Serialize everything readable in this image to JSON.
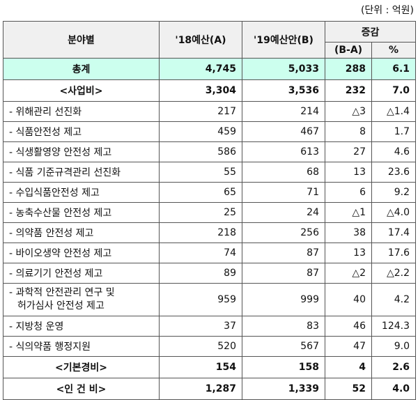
{
  "unit_note": "(단위 : 억원)",
  "header": {
    "category": "분야별",
    "col_a": "'18예산(A)",
    "col_b": "'19예산안(B)",
    "diff_line1": "증감",
    "diff_line2": "(B-A)",
    "pct": "%"
  },
  "total": {
    "name": "총계",
    "a": "4,745",
    "b": "5,033",
    "diff": "288",
    "pct": "6.1"
  },
  "business": {
    "name": "<사업비>",
    "a": "3,304",
    "b": "3,536",
    "diff": "232",
    "pct": "7.0"
  },
  "items": [
    {
      "name": "- 위해관리 선진화",
      "a": "217",
      "b": "214",
      "diff": "△3",
      "pct": "△1.4"
    },
    {
      "name": "- 식품안전성 제고",
      "a": "459",
      "b": "467",
      "diff": "8",
      "pct": "1.7"
    },
    {
      "name": "- 식생활영양 안전성 제고",
      "a": "586",
      "b": "613",
      "diff": "27",
      "pct": "4.6"
    },
    {
      "name": "- 식품 기준규격관리 선진화",
      "a": "55",
      "b": "68",
      "diff": "13",
      "pct": "23.6"
    },
    {
      "name": "- 수입식품안전성 제고",
      "a": "65",
      "b": "71",
      "diff": "6",
      "pct": "9.2"
    },
    {
      "name": "- 농축수산물 안전성 제고",
      "a": "25",
      "b": "24",
      "diff": "△1",
      "pct": "△4.0"
    },
    {
      "name": "- 의약품 안전성 제고",
      "a": "218",
      "b": "256",
      "diff": "38",
      "pct": "17.4"
    },
    {
      "name": "- 바이오생약 안전성 제고",
      "a": "74",
      "b": "87",
      "diff": "13",
      "pct": "17.6"
    },
    {
      "name": "- 의료기기 안전성 제고",
      "a": "89",
      "b": "87",
      "diff": "△2",
      "pct": "△2.2"
    },
    {
      "name_line1": "- 과학적 안전관리 연구 및",
      "name_line2": "허가심사 안전성 제고",
      "a": "959",
      "b": "999",
      "diff": "40",
      "pct": "4.2"
    },
    {
      "name": "- 지방청 운영",
      "a": "37",
      "b": "83",
      "diff": "46",
      "pct": "124.3"
    },
    {
      "name": "- 식의약품 행정지원",
      "a": "520",
      "b": "567",
      "diff": "47",
      "pct": "9.0"
    }
  ],
  "basic": {
    "name": "<기본경비>",
    "a": "154",
    "b": "158",
    "diff": "4",
    "pct": "2.6"
  },
  "personnel": {
    "name": "<인 건 비>",
    "a": "1,287",
    "b": "1,339",
    "diff": "52",
    "pct": "4.0"
  }
}
